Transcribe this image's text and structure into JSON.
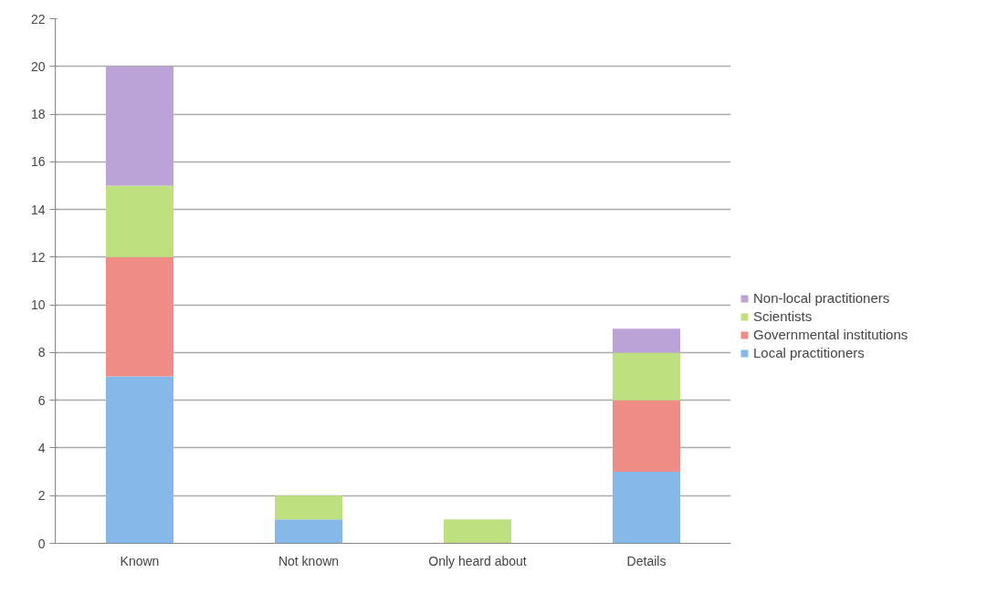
{
  "chart_data": {
    "type": "bar",
    "stacked": true,
    "categories": [
      "Known",
      "Not known",
      "Only heard about",
      "Details"
    ],
    "series": [
      {
        "name": "Local practitioners",
        "color": "#86b8ea",
        "values": [
          7,
          1,
          0,
          3
        ]
      },
      {
        "name": "Governmental institutions",
        "color": "#ef8c86",
        "values": [
          5,
          0,
          0,
          3
        ]
      },
      {
        "name": "Scientists",
        "color": "#bfe07f",
        "values": [
          3,
          1,
          1,
          2
        ]
      },
      {
        "name": "Non-local practitioners",
        "color": "#bba3d8",
        "values": [
          5,
          0,
          0,
          1
        ]
      }
    ],
    "ylim": [
      0,
      22
    ],
    "yticks": [
      0,
      2,
      4,
      6,
      8,
      10,
      12,
      14,
      16,
      18,
      20,
      22
    ],
    "grid": "y",
    "legend": "right"
  }
}
